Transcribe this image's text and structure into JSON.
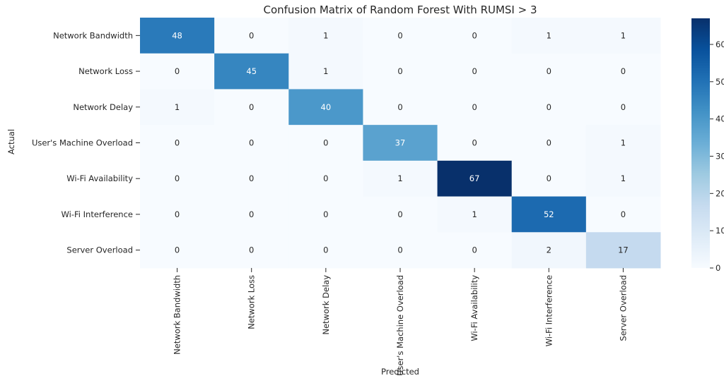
{
  "chart_data": {
    "type": "heatmap",
    "title": "Confusion Matrix of Random Forest With RUMSI > 3",
    "xlabel": "Predicted",
    "ylabel": "Actual",
    "row_labels": [
      "Network Bandwidth",
      "Network Loss",
      "Network Delay",
      "User's Machine Overload",
      "Wi-Fi Availability",
      "Wi-Fi Interference",
      "Server Overload"
    ],
    "col_labels": [
      "Network Bandwidth",
      "Network Loss",
      "Network Delay",
      "User's Machine Overload",
      "Wi-Fi Availability",
      "Wi-Fi Interference",
      "Server Overload"
    ],
    "values": [
      [
        48,
        0,
        1,
        0,
        0,
        1,
        1
      ],
      [
        0,
        45,
        1,
        0,
        0,
        0,
        0
      ],
      [
        1,
        0,
        40,
        0,
        0,
        0,
        0
      ],
      [
        0,
        0,
        0,
        37,
        0,
        0,
        1
      ],
      [
        0,
        0,
        0,
        1,
        67,
        0,
        1
      ],
      [
        0,
        0,
        0,
        0,
        1,
        52,
        0
      ],
      [
        0,
        0,
        0,
        0,
        0,
        2,
        17
      ]
    ],
    "colormap": "Blues",
    "color_low": "#f7fbff",
    "color_high": "#08306b",
    "vmin": 0,
    "vmax": 67,
    "colorbar_ticks": [
      0,
      10,
      20,
      30,
      40,
      50,
      60
    ]
  }
}
